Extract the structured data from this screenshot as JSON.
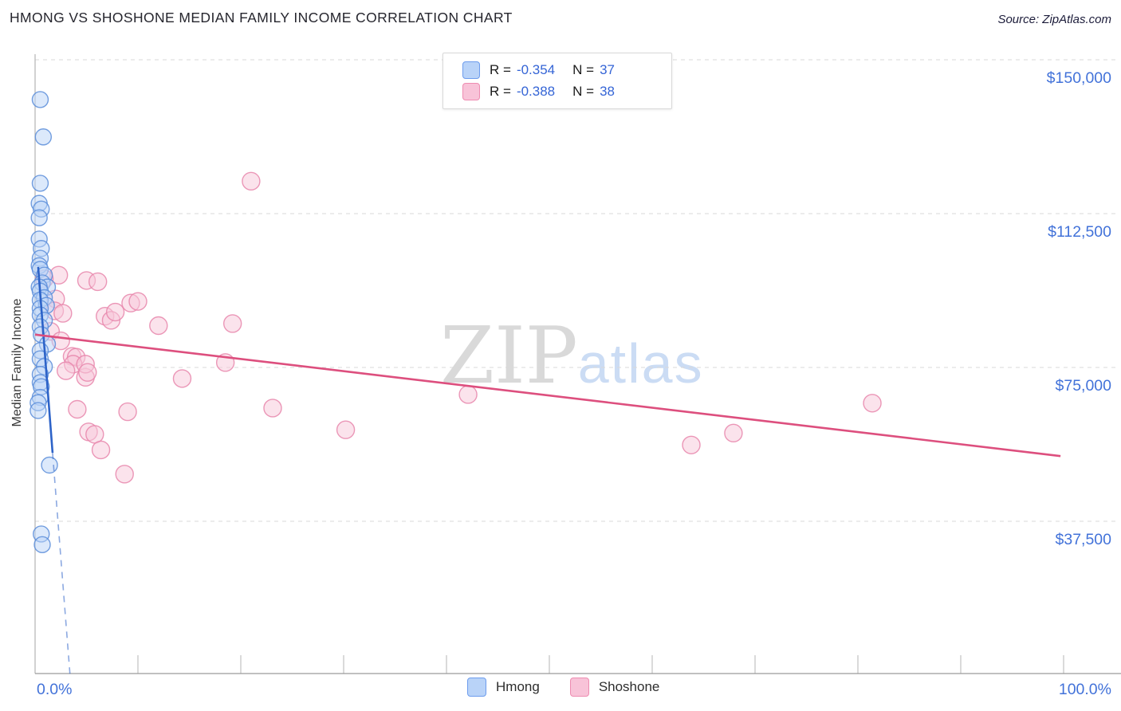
{
  "header": {
    "title": "HMONG VS SHOSHONE MEDIAN FAMILY INCOME CORRELATION CHART",
    "source": "Source: ZipAtlas.com"
  },
  "legend_box": {
    "rows": [
      {
        "series": "Hmong",
        "r_label": "R =",
        "r_value": "-0.354",
        "n_label": "N =",
        "n_value": "37"
      },
      {
        "series": "Shoshone",
        "r_label": "R =",
        "r_value": "-0.388",
        "n_label": "N =",
        "n_value": "38"
      }
    ]
  },
  "bottom_legend": {
    "items": [
      {
        "label": "Hmong"
      },
      {
        "label": "Shoshone"
      }
    ]
  },
  "watermark": {
    "part1": "ZIP",
    "part2": "atlas"
  },
  "colors": {
    "axis_tick_label": "#4272d9",
    "grid": "#d8d8d8",
    "y_axis_line": "#b5b5b5",
    "x_axis_line": "#9a9a9a",
    "hmong_fill": "#b9d3f8",
    "hmong_stroke": "#5b8dd9",
    "shoshone_fill": "#f8c7d9",
    "shoshone_stroke": "#e886ab",
    "hmong_trend": "#2d63c8",
    "shoshone_trend": "#dd4f7e"
  },
  "chart_data": {
    "type": "scatter",
    "title": "HMONG VS SHOSHONE MEDIAN FAMILY INCOME CORRELATION CHART",
    "xlabel": "",
    "ylabel": "Median Family Income",
    "x_axis": {
      "min": 0,
      "max": 100,
      "unit": "%",
      "tick_step": 10,
      "grid": false,
      "first_label": "0.0%",
      "last_label": "100.0%"
    },
    "y_axis": {
      "min": 0,
      "max": 150000,
      "grid": true,
      "ticks": [
        {
          "value": 150000,
          "label": "$150,000"
        },
        {
          "value": 112500,
          "label": "$112,500"
        },
        {
          "value": 75000,
          "label": "$75,000"
        },
        {
          "value": 37500,
          "label": "$37,500"
        }
      ]
    },
    "legend_position": "bottom",
    "series": [
      {
        "name": "Hmong",
        "R": -0.354,
        "N": 37,
        "points": [
          [
            0.5,
            140300
          ],
          [
            0.8,
            131200
          ],
          [
            0.5,
            119900
          ],
          [
            0.4,
            115000
          ],
          [
            0.6,
            113600
          ],
          [
            0.4,
            111500
          ],
          [
            0.4,
            106300
          ],
          [
            0.6,
            104000
          ],
          [
            0.5,
            101600
          ],
          [
            0.4,
            99800
          ],
          [
            0.5,
            98900
          ],
          [
            0.9,
            97500
          ],
          [
            0.7,
            95600
          ],
          [
            1.2,
            94600
          ],
          [
            0.4,
            94600
          ],
          [
            0.5,
            93600
          ],
          [
            0.9,
            92000
          ],
          [
            0.5,
            91400
          ],
          [
            1.1,
            90100
          ],
          [
            0.5,
            89400
          ],
          [
            0.5,
            87800
          ],
          [
            0.9,
            86500
          ],
          [
            0.5,
            84900
          ],
          [
            0.6,
            83000
          ],
          [
            1.2,
            80700
          ],
          [
            0.5,
            79100
          ],
          [
            0.5,
            77100
          ],
          [
            0.9,
            75200
          ],
          [
            0.5,
            73300
          ],
          [
            0.5,
            71300
          ],
          [
            0.6,
            70300
          ],
          [
            0.5,
            67700
          ],
          [
            0.3,
            66400
          ],
          [
            0.3,
            64500
          ],
          [
            1.4,
            51200
          ],
          [
            0.6,
            34400
          ],
          [
            0.7,
            31800
          ]
        ]
      },
      {
        "name": "Shoshone",
        "R": -0.388,
        "N": 38,
        "points": [
          [
            21.0,
            120400
          ],
          [
            2.3,
            97500
          ],
          [
            5.0,
            96200
          ],
          [
            6.1,
            95900
          ],
          [
            0.9,
            96600
          ],
          [
            2.0,
            91700
          ],
          [
            1.9,
            88800
          ],
          [
            2.7,
            88200
          ],
          [
            6.8,
            87500
          ],
          [
            7.4,
            86500
          ],
          [
            7.8,
            88500
          ],
          [
            9.3,
            90700
          ],
          [
            10.0,
            91100
          ],
          [
            12.0,
            85200
          ],
          [
            19.2,
            85700
          ],
          [
            18.5,
            76200
          ],
          [
            14.3,
            72300
          ],
          [
            4.9,
            72600
          ],
          [
            3.6,
            77700
          ],
          [
            4.0,
            77500
          ],
          [
            3.7,
            75800
          ],
          [
            3.0,
            74200
          ],
          [
            4.9,
            75800
          ],
          [
            5.1,
            73800
          ],
          [
            4.1,
            64800
          ],
          [
            9.0,
            64200
          ],
          [
            5.2,
            59300
          ],
          [
            5.8,
            58700
          ],
          [
            6.4,
            54900
          ],
          [
            8.7,
            49000
          ],
          [
            23.1,
            65100
          ],
          [
            30.2,
            59800
          ],
          [
            42.1,
            68400
          ],
          [
            63.8,
            56100
          ],
          [
            67.9,
            59000
          ],
          [
            81.4,
            66300
          ],
          [
            1.5,
            83800
          ],
          [
            2.5,
            81500
          ]
        ]
      }
    ],
    "trend_lines": [
      {
        "series": "Hmong",
        "x1": 0.3,
        "y1": 99500,
        "x2": 1.7,
        "y2": 54200,
        "dashed_extension": {
          "x": 3.4,
          "y": 0
        }
      },
      {
        "series": "Shoshone",
        "x1": 0.0,
        "y1": 83000,
        "x2": 99.7,
        "y2": 53400
      }
    ]
  }
}
